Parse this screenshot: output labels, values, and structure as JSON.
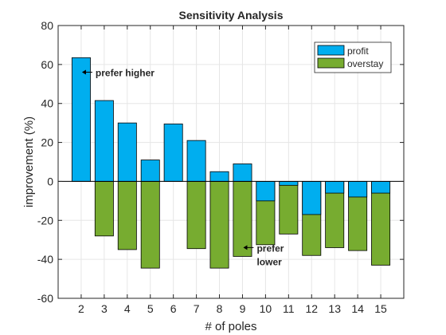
{
  "chart_data": {
    "type": "bar",
    "title": "Sensitivity Analysis",
    "xlabel": "# of poles",
    "ylabel": "improvement (%)",
    "categories": [
      2,
      3,
      4,
      5,
      6,
      7,
      8,
      9,
      10,
      11,
      12,
      13,
      14,
      15
    ],
    "ylim": [
      -60,
      80
    ],
    "yticks": [
      -60,
      -40,
      -20,
      0,
      20,
      40,
      60,
      80
    ],
    "grid": true,
    "legend_position": "top-right",
    "series": [
      {
        "name": "profit",
        "color": "#00AEEF",
        "values": [
          63.5,
          41.5,
          30,
          11,
          29.5,
          21,
          5,
          9,
          -10,
          -2,
          -17,
          -6,
          -8,
          -6
        ]
      },
      {
        "name": "overstay",
        "color": "#77AC30",
        "values": [
          0,
          -28,
          -35,
          -44.5,
          0,
          -34.5,
          -44.5,
          -38.5,
          -32.5,
          -27,
          -38,
          -34,
          -35.5,
          -43
        ]
      }
    ],
    "annotations": [
      {
        "text": "prefer higher",
        "arrow": "←",
        "x": 2,
        "y": 54
      },
      {
        "text": "prefer",
        "arrow": "←",
        "x": 9,
        "y": -36
      },
      {
        "text": "lower",
        "arrow": "",
        "x": 9,
        "y": -43
      }
    ]
  }
}
